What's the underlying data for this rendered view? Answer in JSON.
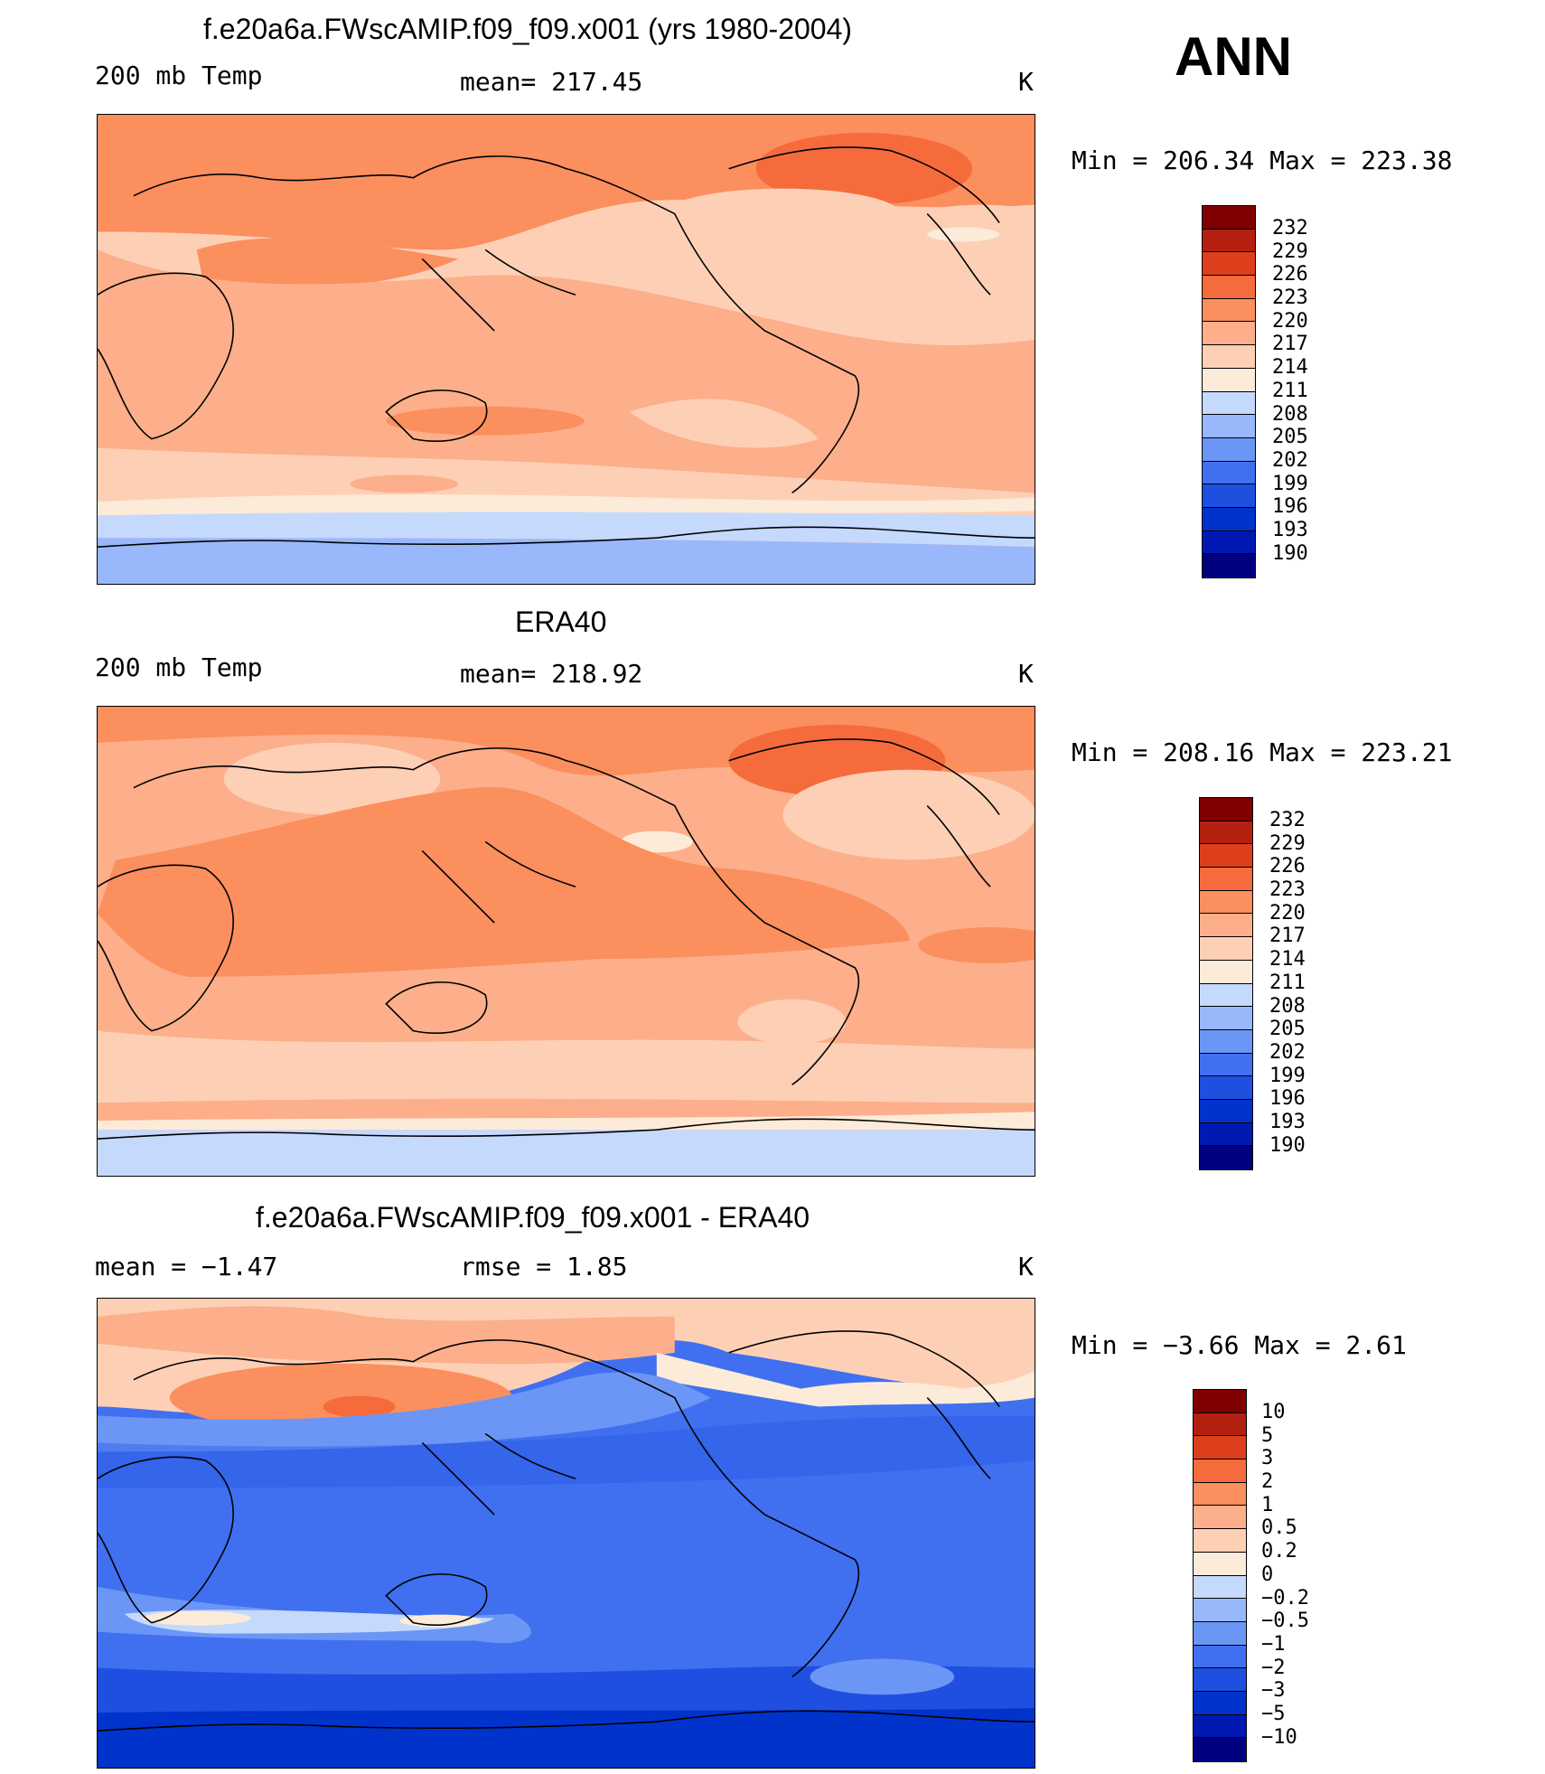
{
  "season": "ANN",
  "colors": {
    "abs_scale": [
      "#00007f",
      "#0019b3",
      "#0033cc",
      "#1f4fe0",
      "#4070f0",
      "#6b96f6",
      "#98b8fb",
      "#c5d9fd",
      "#fdebd9",
      "#fdd0b6",
      "#fcaf8a",
      "#fb8f5e",
      "#f56b3c",
      "#dd3f1c",
      "#b3200f",
      "#800000"
    ],
    "diff_scale": [
      "#00007f",
      "#0019b3",
      "#0033cc",
      "#1f4fe0",
      "#4070f0",
      "#6b96f6",
      "#98b8fb",
      "#c5d9fd",
      "#fdebd9",
      "#fdd0b6",
      "#fcaf8a",
      "#fb8f5e",
      "#f56b3c",
      "#dd3f1c",
      "#b3200f",
      "#800000"
    ],
    "land": "#000000"
  },
  "panels": [
    {
      "title": "f.e20a6a.FWscAMIP.f09_f09.x001 (yrs 1980-2004)",
      "left_label": "200 mb Temp",
      "center_label": "mean= 217.45",
      "units": "K",
      "minmax": "Min = 206.34 Max = 223.38",
      "field": "model",
      "colorbar_ticks": [
        "232",
        "229",
        "226",
        "223",
        "220",
        "217",
        "214",
        "211",
        "208",
        "205",
        "202",
        "199",
        "196",
        "193",
        "190"
      ]
    },
    {
      "title": "ERA40",
      "left_label": "200 mb Temp",
      "center_label": "mean= 218.92",
      "units": "K",
      "minmax": "Min = 208.16 Max = 223.21",
      "field": "obs",
      "colorbar_ticks": [
        "232",
        "229",
        "226",
        "223",
        "220",
        "217",
        "214",
        "211",
        "208",
        "205",
        "202",
        "199",
        "196",
        "193",
        "190"
      ]
    },
    {
      "title": "f.e20a6a.FWscAMIP.f09_f09.x001 - ERA40",
      "left_label": "mean =  −1.47",
      "center_label": "rmse =   1.85",
      "units": "K",
      "minmax": "Min =  −3.66 Max =   2.61",
      "field": "diff",
      "colorbar_ticks": [
        "10",
        "5",
        "3",
        "2",
        "1",
        "0.5",
        "0.2",
        "0",
        "−0.2",
        "−0.5",
        "−1",
        "−2",
        "−3",
        "−5",
        "−10"
      ]
    }
  ]
}
